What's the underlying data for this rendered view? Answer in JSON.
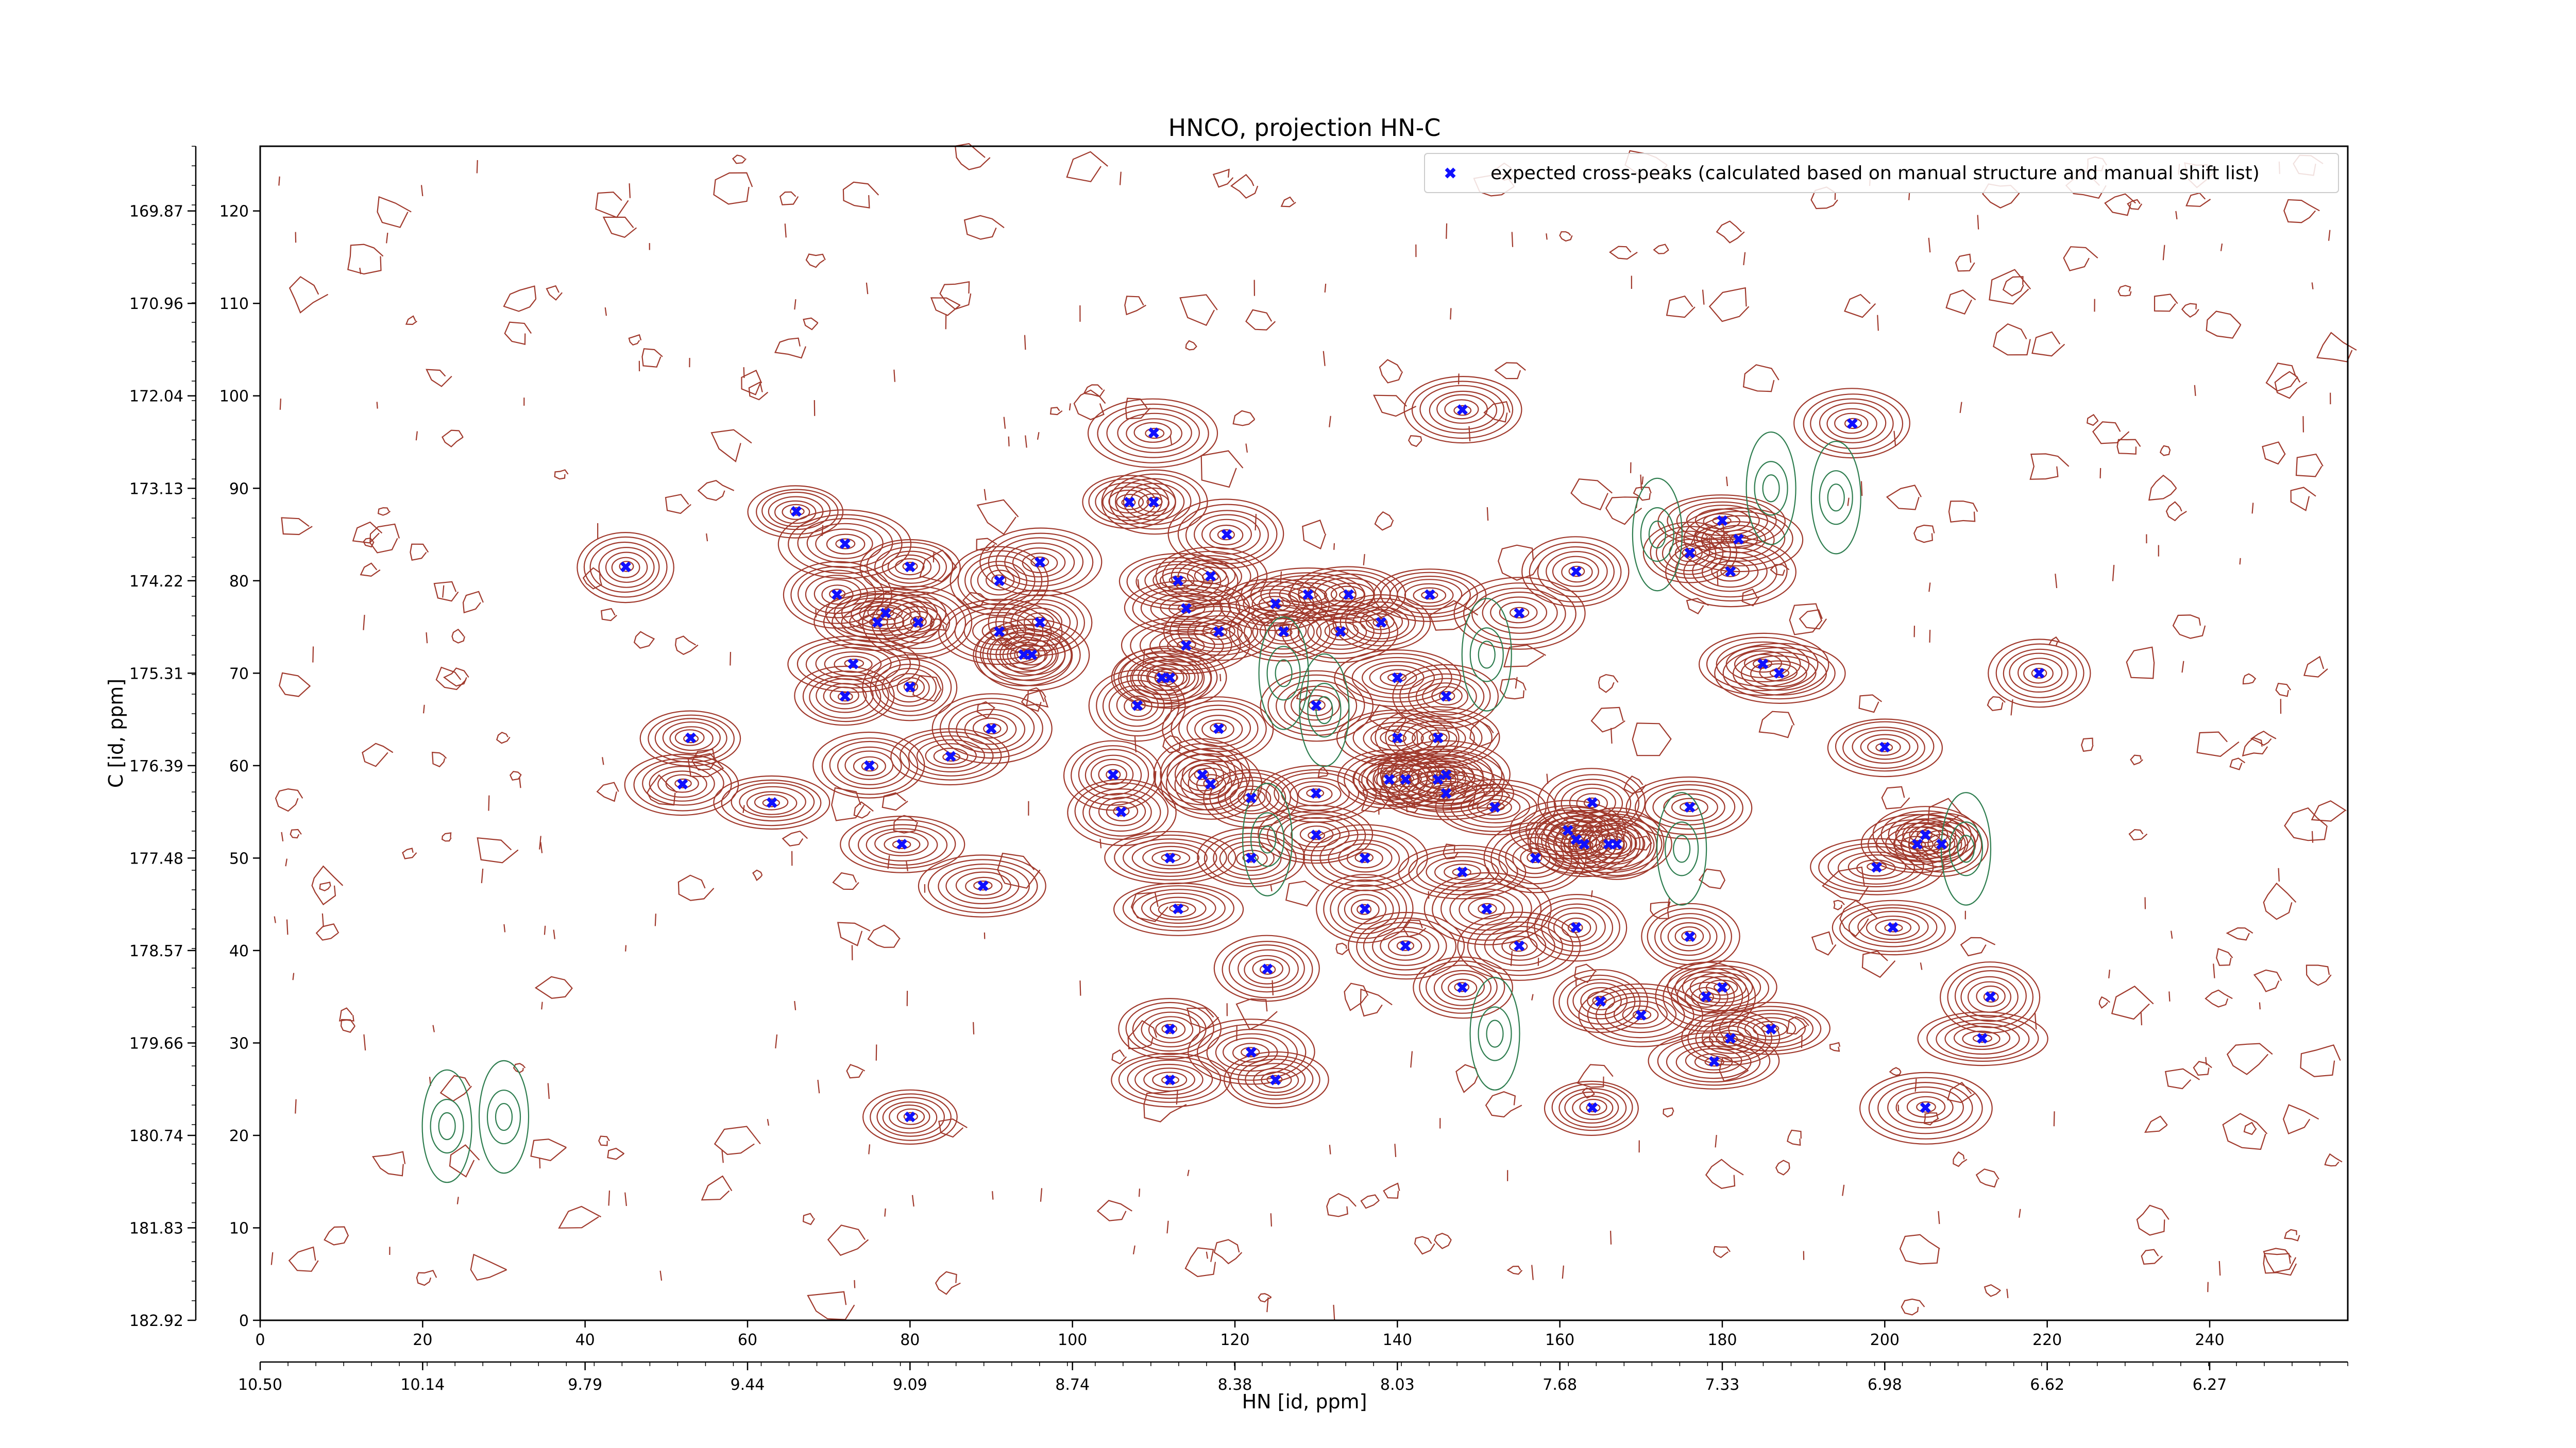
{
  "chart_data": {
    "type": "scatter",
    "title": "HNCO, projection HN-C",
    "xlabel": "HN [id, ppm]",
    "ylabel": "C [id, ppm]",
    "xlim": [
      0,
      257
    ],
    "ylim": [
      0,
      127
    ],
    "x_ticks": [
      0,
      20,
      40,
      60,
      80,
      100,
      120,
      140,
      160,
      180,
      200,
      220,
      240
    ],
    "y_ticks": [
      0,
      10,
      20,
      30,
      40,
      50,
      60,
      70,
      80,
      90,
      100,
      110,
      120
    ],
    "x2_tick_labels": [
      "10.50",
      "10.14",
      "9.79",
      "9.44",
      "9.09",
      "8.74",
      "8.38",
      "8.03",
      "7.68",
      "7.33",
      "6.98",
      "6.62",
      "6.27"
    ],
    "y2_tick_labels": [
      "182.92",
      "181.83",
      "180.74",
      "179.66",
      "178.57",
      "177.48",
      "176.39",
      "175.31",
      "174.22",
      "173.13",
      "172.04",
      "170.96",
      "169.87"
    ],
    "legend": {
      "position": "top-right",
      "entries": [
        {
          "name": "expected cross-peaks (calculated based on manual structure and manual shift list)",
          "marker": "x",
          "color": "#1010ff"
        }
      ]
    },
    "series": [
      {
        "name": "expected cross-peaks (calculated based on manual structure and manual shift list)",
        "color": "#1010ff",
        "points": [
          [
            45,
            81.5
          ],
          [
            66,
            87.5
          ],
          [
            72,
            84
          ],
          [
            80,
            81.5
          ],
          [
            71,
            78.5
          ],
          [
            77,
            76.5
          ],
          [
            76,
            75.5
          ],
          [
            81,
            75.5
          ],
          [
            73,
            71
          ],
          [
            72,
            67.5
          ],
          [
            80,
            68.5
          ],
          [
            91,
            80
          ],
          [
            96,
            82
          ],
          [
            91,
            74.5
          ],
          [
            96,
            75.5
          ],
          [
            94,
            72
          ],
          [
            95,
            72
          ],
          [
            53,
            63
          ],
          [
            52,
            58
          ],
          [
            63,
            56
          ],
          [
            75,
            60
          ],
          [
            85,
            61
          ],
          [
            90,
            64
          ],
          [
            79,
            51.5
          ],
          [
            89,
            47
          ],
          [
            110,
            96
          ],
          [
            107,
            88.5
          ],
          [
            110,
            88.5
          ],
          [
            119,
            85
          ],
          [
            113,
            80
          ],
          [
            117,
            80.5
          ],
          [
            114,
            77
          ],
          [
            118,
            74.5
          ],
          [
            114,
            73
          ],
          [
            111,
            69.5
          ],
          [
            112,
            69.5
          ],
          [
            108,
            66.5
          ],
          [
            118,
            64
          ],
          [
            125,
            77.5
          ],
          [
            129,
            78.5
          ],
          [
            134,
            78.5
          ],
          [
            126,
            74.5
          ],
          [
            133,
            74.5
          ],
          [
            138,
            75.5
          ],
          [
            144,
            78.5
          ],
          [
            130,
            66.5
          ],
          [
            140,
            69.5
          ],
          [
            146,
            67.5
          ],
          [
            148,
            98.5
          ],
          [
            196,
            97
          ],
          [
            176,
            83
          ],
          [
            180,
            86.5
          ],
          [
            182,
            84.5
          ],
          [
            181,
            81
          ],
          [
            162,
            81
          ],
          [
            155,
            76.5
          ],
          [
            185,
            71
          ],
          [
            187,
            70
          ],
          [
            219,
            70
          ],
          [
            140,
            63
          ],
          [
            145,
            63
          ],
          [
            146,
            59
          ],
          [
            139,
            58.5
          ],
          [
            141,
            58.5
          ],
          [
            146,
            57
          ],
          [
            145,
            58.5
          ],
          [
            105,
            59
          ],
          [
            106,
            55
          ],
          [
            116,
            59
          ],
          [
            117,
            58
          ],
          [
            122,
            56.5
          ],
          [
            130,
            57
          ],
          [
            112,
            50
          ],
          [
            122,
            50
          ],
          [
            130,
            52.5
          ],
          [
            136,
            50
          ],
          [
            152,
            55.5
          ],
          [
            157,
            50
          ],
          [
            164,
            56
          ],
          [
            161,
            53
          ],
          [
            163,
            51.5
          ],
          [
            166,
            51.5
          ],
          [
            167,
            51.5
          ],
          [
            162,
            52
          ],
          [
            176,
            55.5
          ],
          [
            200,
            62
          ],
          [
            199,
            49
          ],
          [
            204,
            51.5
          ],
          [
            205,
            52.5
          ],
          [
            207,
            51.5
          ],
          [
            148,
            48.5
          ],
          [
            151,
            44.5
          ],
          [
            113,
            44.5
          ],
          [
            124,
            38
          ],
          [
            136,
            44.5
          ],
          [
            141,
            40.5
          ],
          [
            148,
            36
          ],
          [
            155,
            40.5
          ],
          [
            162,
            42.5
          ],
          [
            176,
            41.5
          ],
          [
            201,
            42.5
          ],
          [
            165,
            34.5
          ],
          [
            170,
            33
          ],
          [
            178,
            35
          ],
          [
            180,
            36
          ],
          [
            186,
            31.5
          ],
          [
            181,
            30.5
          ],
          [
            179,
            28
          ],
          [
            112,
            31.5
          ],
          [
            112,
            26
          ],
          [
            122,
            29
          ],
          [
            125,
            26
          ],
          [
            80,
            22
          ],
          [
            164,
            23
          ],
          [
            205,
            23
          ],
          [
            213,
            35
          ],
          [
            212,
            30.5
          ]
        ]
      }
    ],
    "grid": false
  }
}
